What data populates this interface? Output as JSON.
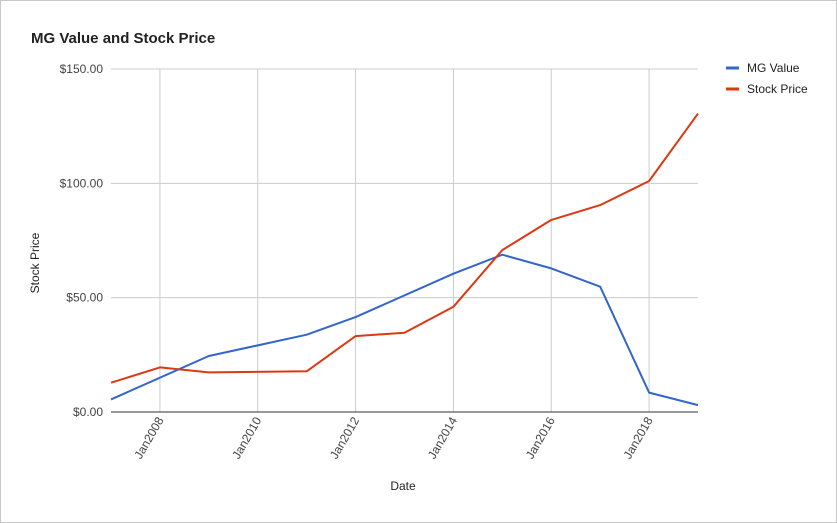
{
  "chart_data": {
    "type": "line",
    "title": "MG Value and Stock Price",
    "xlabel": "Date",
    "ylabel": "Stock Price",
    "ylim": [
      0,
      150
    ],
    "yticks": [
      {
        "value": 0,
        "label": "$0.00"
      },
      {
        "value": 50,
        "label": "$50.00"
      },
      {
        "value": 100,
        "label": "$100.00"
      },
      {
        "value": 150,
        "label": "$150.00"
      }
    ],
    "xlim": [
      2007.0,
      2019.0
    ],
    "xticks": [
      {
        "value": 2008,
        "label": "Jan2008"
      },
      {
        "value": 2010,
        "label": "Jan2010"
      },
      {
        "value": 2012,
        "label": "Jan2012"
      },
      {
        "value": 2014,
        "label": "Jan2014"
      },
      {
        "value": 2016,
        "label": "Jan2016"
      },
      {
        "value": 2018,
        "label": "Jan2018"
      }
    ],
    "grid": true,
    "legend_position": "right",
    "x": [
      2007,
      2008,
      2009,
      2010,
      2011,
      2012,
      2013,
      2014,
      2015,
      2016,
      2017,
      2018,
      2019
    ],
    "series": [
      {
        "name": "MG Value",
        "color": "#3366cc",
        "x": [
          2007.0,
          2009.0,
          2011.0,
          2012.0,
          2014.0,
          2015.0,
          2016.0,
          2017.0,
          2018.0,
          2019.0
        ],
        "values": [
          5.5,
          24.5,
          33.8,
          41.5,
          60.5,
          68.8,
          62.8,
          54.8,
          8.5,
          3.0
        ]
      },
      {
        "name": "Stock Price",
        "color": "#dc3912",
        "x": [
          2007.0,
          2008.0,
          2009.0,
          2011.0,
          2012.0,
          2013.0,
          2014.0,
          2015.0,
          2016.0,
          2017.0,
          2018.0,
          2019.0
        ],
        "values": [
          12.8,
          19.5,
          17.3,
          17.8,
          33.2,
          34.7,
          46.0,
          70.8,
          84.0,
          90.5,
          101.0,
          130.5
        ]
      }
    ]
  }
}
